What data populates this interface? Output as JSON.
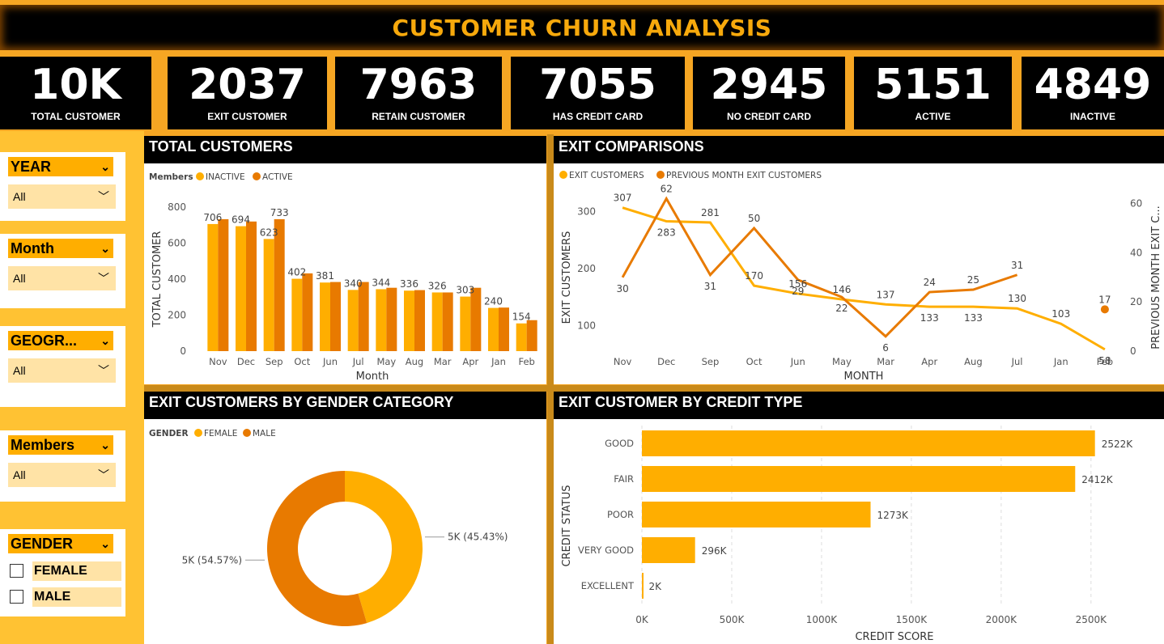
{
  "title": "CUSTOMER CHURN ANALYSIS",
  "kpis": [
    {
      "value": "10K",
      "label": "TOTAL CUSTOMER"
    },
    {
      "value": "2037",
      "label": "EXIT CUSTOMER"
    },
    {
      "value": "7963",
      "label": "RETAIN CUSTOMER"
    },
    {
      "value": "7055",
      "label": "HAS CREDIT CARD"
    },
    {
      "value": "2945",
      "label": "NO CREDIT CARD"
    },
    {
      "value": "5151",
      "label": "ACTIVE"
    },
    {
      "value": "4849",
      "label": "INACTIVE"
    }
  ],
  "slicers": {
    "year": {
      "label": "YEAR",
      "value": "All"
    },
    "month": {
      "label": "Month",
      "value": "All"
    },
    "geography": {
      "label": "GEOGR...",
      "value": "All"
    },
    "members": {
      "label": "Members",
      "value": "All"
    },
    "gender": {
      "label": "GENDER",
      "options": [
        "FEMALE",
        "MALE"
      ]
    }
  },
  "icons": {
    "dropdown": "chevron-down-icon",
    "checkbox": "checkbox-icon"
  },
  "colors": {
    "primary": "#FFAE00",
    "secondary": "#E87A00",
    "panel": "#FFFFFF",
    "header": "#000000"
  },
  "panels": {
    "total_customers": "TOTAL CUSTOMERS",
    "exit_comparisons": "EXIT COMPARISONS",
    "gender": "EXIT CUSTOMERS BY GENDER CATEGORY",
    "credit": "EXIT CUSTOMER BY CREDIT TYPE"
  },
  "chart_data": [
    {
      "type": "bar",
      "legend_title": "Members",
      "xlabel": "Month",
      "ylabel": "TOTAL CUSTOMER",
      "ylim": [
        0,
        800
      ],
      "yticks": [
        0,
        200,
        400,
        600,
        800
      ],
      "categories": [
        "Nov",
        "Dec",
        "Sep",
        "Oct",
        "Jun",
        "Jul",
        "May",
        "Aug",
        "Mar",
        "Apr",
        "Jan",
        "Feb"
      ],
      "series": [
        {
          "name": "INACTIVE",
          "color": "#FFAE00",
          "values": [
            706,
            694,
            623,
            402,
            381,
            340,
            344,
            336,
            326,
            303,
            240,
            154
          ]
        },
        {
          "name": "ACTIVE",
          "color": "#E87A00",
          "values": [
            733,
            720,
            733,
            432,
            384,
            384,
            352,
            339,
            326,
            352,
            242,
            172
          ]
        }
      ],
      "labels": [
        "706",
        "694",
        "623",
        "733",
        "402",
        "381",
        "340",
        "344",
        "336",
        "326",
        "303",
        "240",
        "154"
      ],
      "label_series": [
        0,
        0,
        0,
        1,
        0,
        0,
        0,
        0,
        0,
        0,
        0,
        0,
        0
      ],
      "label_index": [
        0,
        1,
        2,
        2,
        3,
        4,
        5,
        6,
        7,
        8,
        9,
        10,
        11
      ],
      "grid": false,
      "legend": "top-left"
    },
    {
      "type": "line",
      "xlabel": "MONTH",
      "ylabel": "EXIT CUSTOMERS",
      "y2label": "PREVIOUS MONTH EXIT C...",
      "ylim": [
        55,
        325
      ],
      "yticks": [
        100,
        200,
        300
      ],
      "y2lim": [
        0,
        62.5
      ],
      "y2ticks": [
        0,
        20,
        40,
        60
      ],
      "categories": [
        "Nov",
        "Dec",
        "Sep",
        "Oct",
        "Jun",
        "May",
        "Mar",
        "Apr",
        "Aug",
        "Jul",
        "Jan",
        "Feb"
      ],
      "series": [
        {
          "name": "EXIT CUSTOMERS",
          "color": "#FFAE00",
          "axis": "left",
          "values": [
            307,
            283,
            281,
            170,
            156,
            146,
            137,
            133,
            133,
            130,
            103,
            58
          ]
        },
        {
          "name": "PREVIOUS MONTH EXIT CUSTOMERS",
          "color": "#E87A00",
          "axis": "right",
          "values": [
            30,
            62,
            31,
            50,
            29,
            22,
            6,
            24,
            25,
            31,
            null,
            17
          ]
        }
      ],
      "grid": false,
      "legend": "top-left"
    },
    {
      "type": "pie",
      "legend_title": "GENDER",
      "slices": [
        {
          "name": "FEMALE",
          "value": 45.43,
          "label": "5K (45.43%)",
          "color": "#FFAE00"
        },
        {
          "name": "MALE",
          "value": 54.57,
          "label": "5K (54.57%)",
          "color": "#E87A00"
        }
      ],
      "legend": "top-left"
    },
    {
      "type": "bar",
      "orientation": "horizontal",
      "xlabel": "CREDIT SCORE",
      "ylabel": "CREDIT STATUS",
      "xlim": [
        0,
        2600
      ],
      "xticks": [
        0,
        500,
        1000,
        1500,
        2000,
        2500
      ],
      "xtick_labels": [
        "0K",
        "500K",
        "1000K",
        "1500K",
        "2000K",
        "2500K"
      ],
      "categories": [
        "GOOD",
        "FAIR",
        "POOR",
        "VERY GOOD",
        "EXCELLENT"
      ],
      "values": [
        2522,
        2412,
        1273,
        296,
        2
      ],
      "value_labels": [
        "2522K",
        "2412K",
        "1273K",
        "296K",
        "2K"
      ],
      "color": "#FFAE00",
      "grid": true
    }
  ]
}
